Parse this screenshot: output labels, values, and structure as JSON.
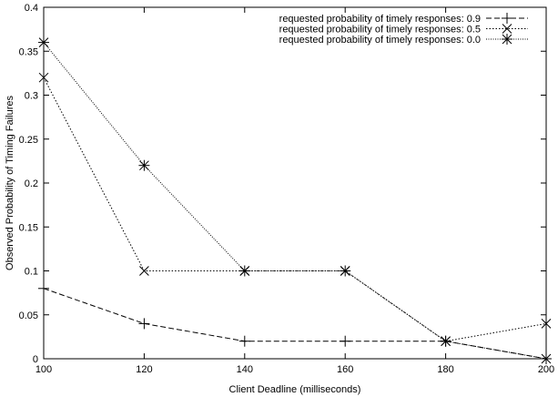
{
  "chart_data": {
    "type": "line",
    "title": "",
    "xlabel": "Client Deadline (milliseconds)",
    "ylabel": "Observed Probability of Timing Failures",
    "xlim": [
      100,
      200
    ],
    "ylim": [
      0,
      0.4
    ],
    "xticks": [
      100,
      120,
      140,
      160,
      180,
      200
    ],
    "yticks": [
      0,
      0.05,
      0.1,
      0.15,
      0.2,
      0.25,
      0.3,
      0.35,
      0.4
    ],
    "xtick_labels": [
      "100",
      "120",
      "140",
      "160",
      "180",
      "200"
    ],
    "ytick_labels": [
      "0",
      "0.05",
      "0.1",
      "0.15",
      "0.2",
      "0.25",
      "0.3",
      "0.35",
      "0.4"
    ],
    "grid": false,
    "legend_position": "top-right",
    "x": [
      100,
      120,
      140,
      160,
      180,
      200
    ],
    "series": [
      {
        "name": "requested probability of timely responses: 0.9",
        "marker": "plus",
        "dash": "long",
        "values": [
          0.08,
          0.04,
          0.02,
          0.02,
          0.02,
          0.0
        ]
      },
      {
        "name": "requested probability of timely responses: 0.5",
        "marker": "cross",
        "dash": "dotted",
        "values": [
          0.32,
          0.1,
          0.1,
          0.1,
          0.02,
          0.04
        ]
      },
      {
        "name": "requested probability of timely responses: 0.0",
        "marker": "star",
        "dash": "fine",
        "values": [
          0.36,
          0.22,
          0.1,
          0.1,
          0.02,
          0.0
        ]
      }
    ]
  }
}
